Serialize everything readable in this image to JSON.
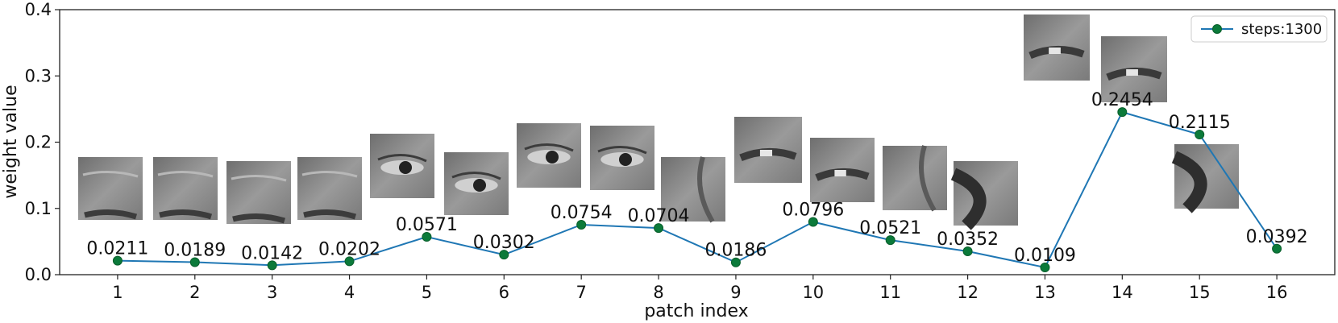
{
  "chart_data": {
    "type": "line",
    "title": "",
    "xlabel": "patch index",
    "ylabel": "weight value",
    "xlim": [
      0.25,
      16.75
    ],
    "ylim": [
      0.0,
      0.4
    ],
    "x": [
      1,
      2,
      3,
      4,
      5,
      6,
      7,
      8,
      9,
      10,
      11,
      12,
      13,
      14,
      15,
      16
    ],
    "x_tick_labels": [
      "1",
      "2",
      "3",
      "4",
      "5",
      "6",
      "7",
      "8",
      "9",
      "10",
      "11",
      "12",
      "13",
      "14",
      "15",
      "16"
    ],
    "y_ticks": [
      0.0,
      0.1,
      0.2,
      0.3,
      0.4
    ],
    "y_tick_labels": [
      "0.0",
      "0.1",
      "0.2",
      "0.3",
      "0.4"
    ],
    "series": [
      {
        "name": "steps:1300",
        "values": [
          0.0211,
          0.0189,
          0.0142,
          0.0202,
          0.0571,
          0.0302,
          0.0754,
          0.0704,
          0.0186,
          0.0796,
          0.0521,
          0.0352,
          0.0109,
          0.2454,
          0.2115,
          0.0392
        ],
        "data_labels": [
          "0.0211",
          "0.0189",
          "0.0142",
          "0.0202",
          "0.0571",
          "0.0302",
          "0.0754",
          "0.0704",
          "0.0186",
          "0.0796",
          "0.0521",
          "0.0352",
          "0.0109",
          "0.2454",
          "0.2115",
          "0.0392"
        ]
      }
    ],
    "legend": {
      "position": "top-right",
      "entries": [
        "steps:1300"
      ]
    },
    "grid": false,
    "annotations": [
      "grayscale face patch image above each point: forehead / eye / cheek / mouth regions"
    ]
  },
  "colors": {
    "line": "#1f77b4",
    "marker": "#0b7a3a",
    "marker_edge": "#0a5f2c",
    "axis": "#222222",
    "patch_dark": "#3c3c3c",
    "patch_mid": "#8c8c8c",
    "patch_light": "#b8b8b8"
  }
}
